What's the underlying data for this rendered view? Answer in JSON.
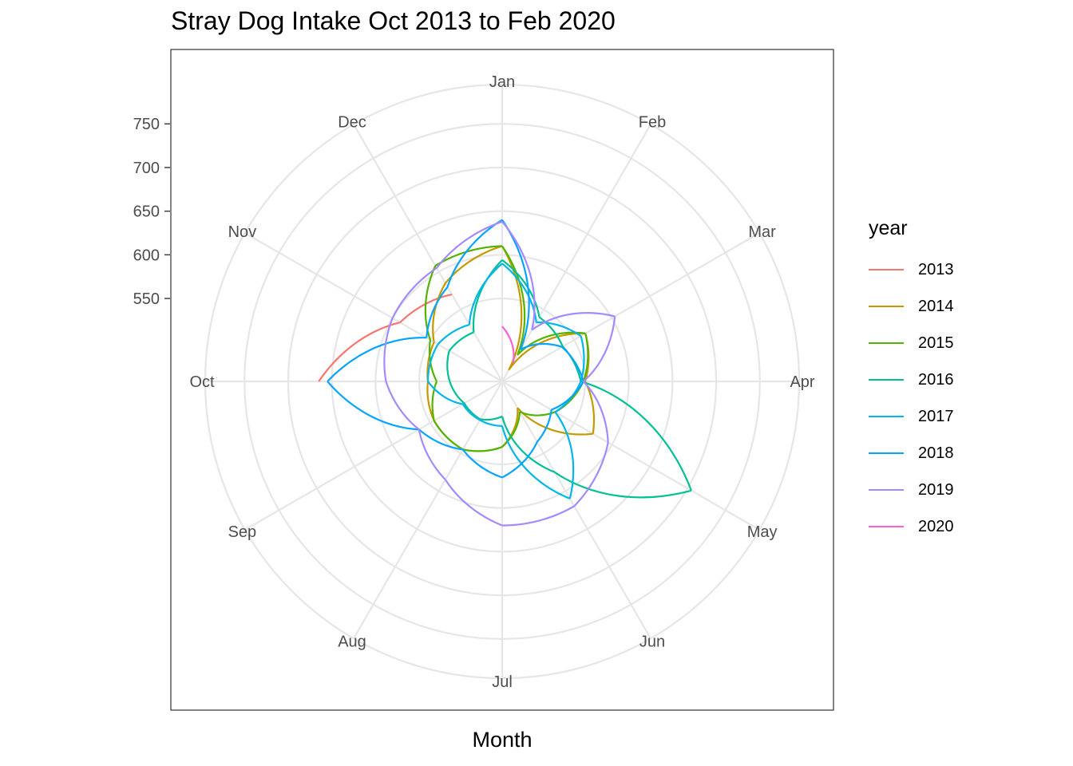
{
  "chart_data": {
    "type": "polar-line",
    "title": "Stray Dog Intake Oct 2013 to Feb 2020",
    "xlabel": "Month",
    "ylabel": "",
    "angle_categories": [
      "Jan",
      "Feb",
      "Mar",
      "Apr",
      "May",
      "Jun",
      "Jul",
      "Aug",
      "Sep",
      "Oct",
      "Nov",
      "Dec"
    ],
    "radial_ticks": [
      550,
      600,
      650,
      700,
      750
    ],
    "radial_range": [
      455,
      795
    ],
    "legend_title": "year",
    "legend_position": "right",
    "grid": true,
    "series": [
      {
        "name": "2013",
        "color": "#F8766D",
        "values": [
          null,
          null,
          null,
          null,
          null,
          null,
          null,
          null,
          null,
          665,
          590,
          570
        ]
      },
      {
        "name": "2014",
        "color": "#C49A00",
        "values": [
          610,
          470,
          565,
          550,
          575,
          490,
          530,
          545,
          545,
          540,
          545,
          585
        ]
      },
      {
        "name": "2015",
        "color": "#53B400",
        "values": [
          610,
          490,
          565,
          548,
          525,
          495,
          530,
          545,
          545,
          530,
          550,
          608
        ]
      },
      {
        "name": "2016",
        "color": "#00C094",
        "values": [
          594,
          540,
          535,
          545,
          705,
          575,
          495,
          505,
          505,
          515,
          525,
          520
        ]
      },
      {
        "name": "2017",
        "color": "#00B6EB",
        "values": [
          590,
          533,
          559,
          545,
          525,
          610,
          506,
          506,
          507,
          540,
          540,
          530
        ]
      },
      {
        "name": "2018",
        "color": "#06A4FF",
        "values": [
          640,
          497,
          534,
          548,
          520,
          535,
          565,
          545,
          565,
          655,
          555,
          580
        ]
      },
      {
        "name": "2019",
        "color": "#A58AFF",
        "values": [
          638,
          523,
          604,
          548,
          595,
          620,
          620,
          585,
          565,
          588,
          600,
          605
        ]
      },
      {
        "name": "2020",
        "color": "#FB61D7",
        "values": [
          518,
          480,
          null,
          null,
          null,
          null,
          null,
          null,
          null,
          null,
          null,
          null
        ]
      }
    ]
  }
}
